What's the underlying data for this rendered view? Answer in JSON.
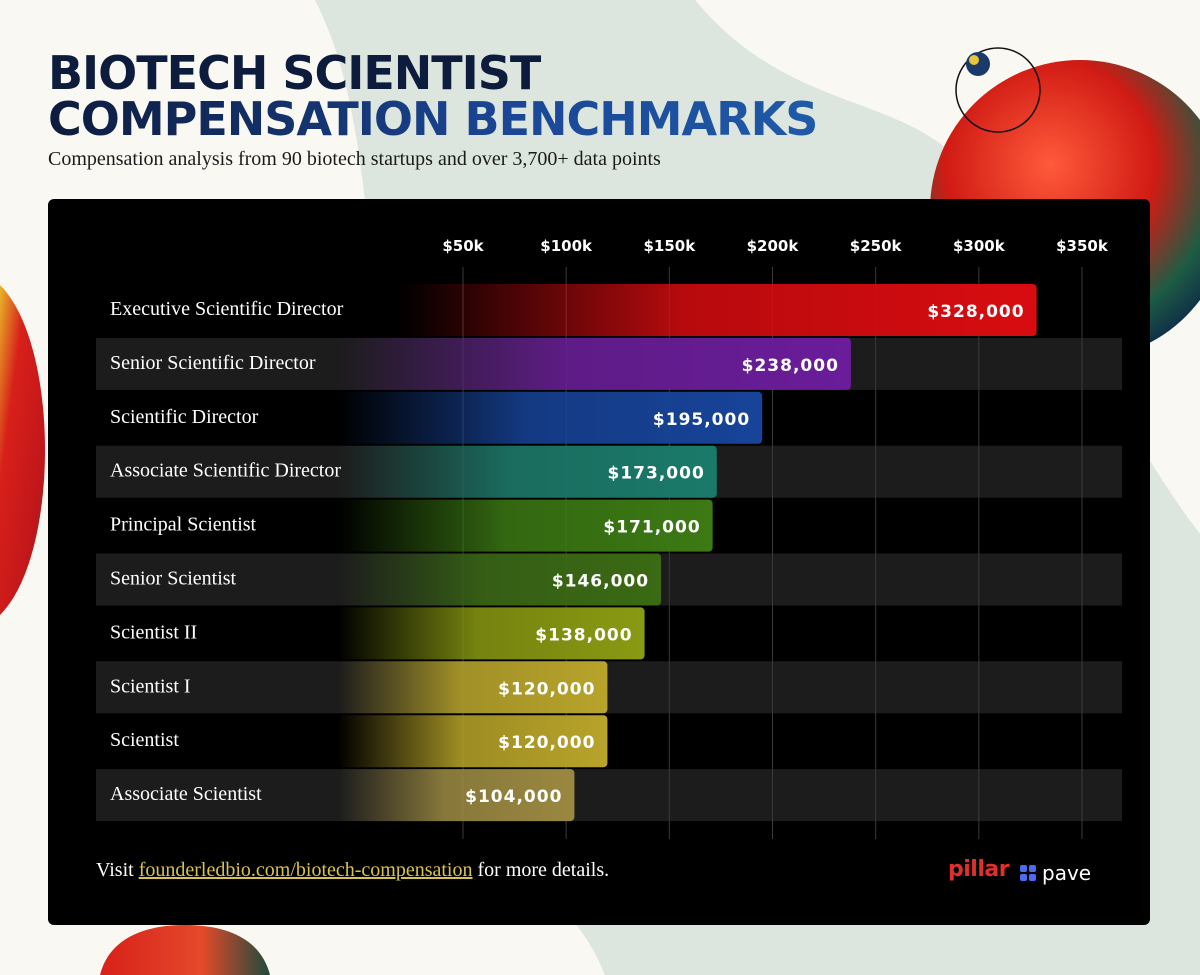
{
  "header": {
    "title_line1": "BIOTECH SCIENTIST",
    "title_line2": "COMPENSATION BENCHMARKS",
    "subtitle": "Compensation analysis from 90 biotech startups and over 3,700+ data points"
  },
  "colors": {
    "title_dark": "#0d1b3d",
    "title_blue": "#1b4696",
    "panel_bg": "#000000",
    "row_stripe": "#1c1c1c",
    "link": "#d9c34a",
    "mint": "#d8e5dc"
  },
  "chart_data": {
    "type": "bar",
    "orientation": "horizontal",
    "title": "",
    "xlabel": "",
    "ylabel": "",
    "xlim": [
      0,
      350000
    ],
    "grid": true,
    "x_ticks": [
      {
        "value": 50000,
        "label": "$50k"
      },
      {
        "value": 100000,
        "label": "$100k"
      },
      {
        "value": 150000,
        "label": "$150k"
      },
      {
        "value": 200000,
        "label": "$200k"
      },
      {
        "value": 250000,
        "label": "$250k"
      },
      {
        "value": 300000,
        "label": "$300k"
      },
      {
        "value": 350000,
        "label": "$350k"
      }
    ],
    "categories": [
      "Executive Scientific Director",
      "Senior Scientific Director",
      "Scientific Director",
      "Associate Scientific Director",
      "Principal Scientist",
      "Senior Scientist",
      "Scientist II",
      "Scientist I",
      "Scientist",
      "Associate Scientist"
    ],
    "values": [
      328000,
      238000,
      195000,
      173000,
      171000,
      146000,
      138000,
      120000,
      120000,
      104000
    ],
    "value_labels": [
      "$328,000",
      "$238,000",
      "$195,000",
      "$173,000",
      "$171,000",
      "$146,000",
      "$138,000",
      "$120,000",
      "$120,000",
      "$104,000"
    ],
    "bar_colors": [
      "#d80c10",
      "#6a1c9a",
      "#17449a",
      "#1a7a6a",
      "#3c7a14",
      "#3a6a14",
      "#8a9a12",
      "#b8a42a",
      "#b8a42a",
      "#9a8840"
    ]
  },
  "footer": {
    "prefix": "Visit ",
    "link_text": "founderledbio.com/biotech-compensation",
    "suffix": " for more details.",
    "logo_pillar": "pillar",
    "logo_pave": "pave"
  }
}
